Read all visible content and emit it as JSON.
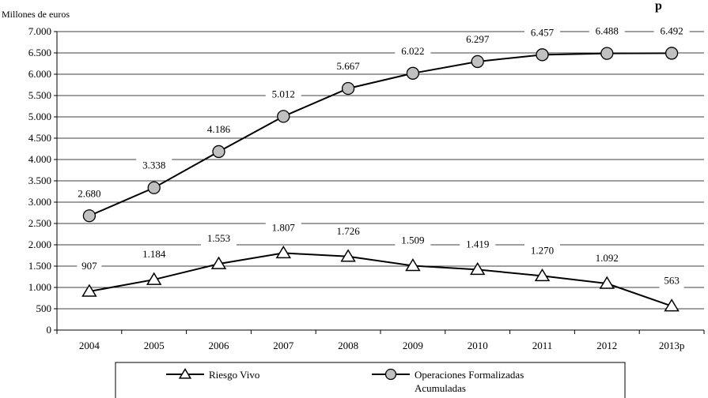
{
  "chart_data": {
    "type": "line",
    "ylabel": "Millones de euros",
    "title_fragment": "p",
    "categories": [
      "2004",
      "2005",
      "2006",
      "2007",
      "2008",
      "2009",
      "2010",
      "2011",
      "2012",
      "2013p"
    ],
    "ylim": [
      0,
      7000
    ],
    "yticks": [
      0,
      500,
      1000,
      1500,
      2000,
      2500,
      3000,
      3500,
      4000,
      4500,
      5000,
      5500,
      6000,
      6500,
      7000
    ],
    "ytick_labels": [
      "0",
      "500",
      "1.000",
      "1.500",
      "2.000",
      "2.500",
      "3.000",
      "3.500",
      "4.000",
      "4.500",
      "5.000",
      "5.500",
      "6.000",
      "6.500",
      "7.000"
    ],
    "grid": true,
    "legend_position": "bottom",
    "series": [
      {
        "name": "Riesgo Vivo",
        "marker": "triangle",
        "color": "#000000",
        "values": [
          907,
          1184,
          1553,
          1807,
          1726,
          1509,
          1419,
          1270,
          1092,
          563
        ],
        "labels": [
          "907",
          "1.184",
          "1.553",
          "1.807",
          "1.726",
          "1.509",
          "1.419",
          "1.270",
          "1.092",
          "563"
        ]
      },
      {
        "name": "Operaciones Formalizadas Acumuladas",
        "name_lines": [
          "Operaciones Formalizadas",
          "Acumuladas"
        ],
        "marker": "circle",
        "color": "#000000",
        "marker_fill": "#c0c0c0",
        "values": [
          2680,
          3338,
          4186,
          5012,
          5667,
          6022,
          6297,
          6457,
          6488,
          6492
        ],
        "labels": [
          "2.680",
          "3.338",
          "4.186",
          "5.012",
          "5.667",
          "6.022",
          "6.297",
          "6.457",
          "6.488",
          "6.492"
        ]
      }
    ]
  }
}
